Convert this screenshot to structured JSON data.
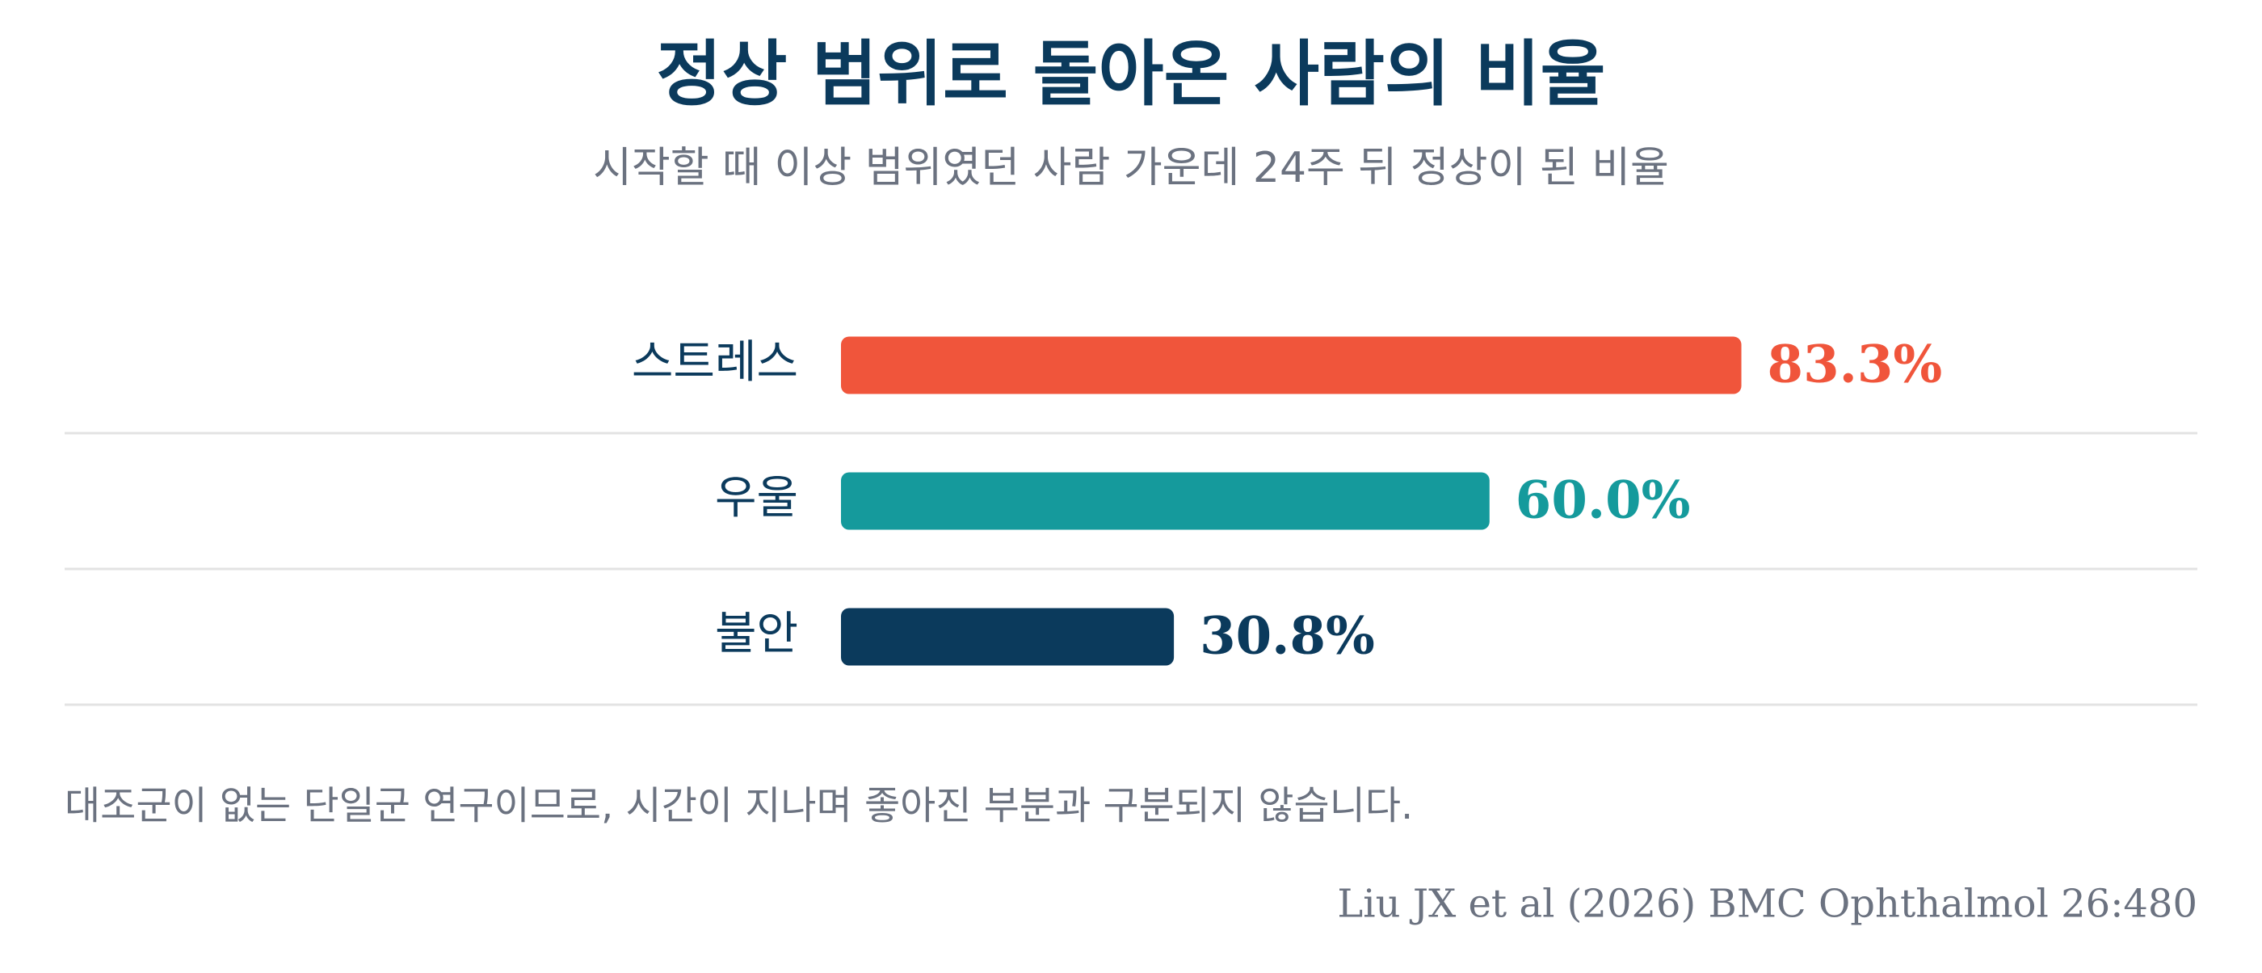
{
  "chart_data": {
    "type": "bar",
    "orientation": "horizontal",
    "title": "정상 범위로 돌아온 사람의 비율",
    "subtitle": "시작할 때 이상 범위였던 사람 가운데 24주 뒤 정상이 된 비율",
    "categories": [
      "스트레스",
      "우울",
      "불안"
    ],
    "values": [
      83.3,
      60.0,
      30.8
    ],
    "value_labels": [
      "83.3%",
      "60.0%",
      "30.8%"
    ],
    "colors": [
      "#f0553b",
      "#159a9c",
      "#0b3a5c"
    ],
    "xlim": [
      0,
      100
    ],
    "note": "대조군이 없는 단일군 연구이므로, 시간이 지나며 좋아진 부분과 구분되지 않습니다.",
    "source": "Liu JX et al (2026) BMC Ophthalmol 26:480"
  }
}
